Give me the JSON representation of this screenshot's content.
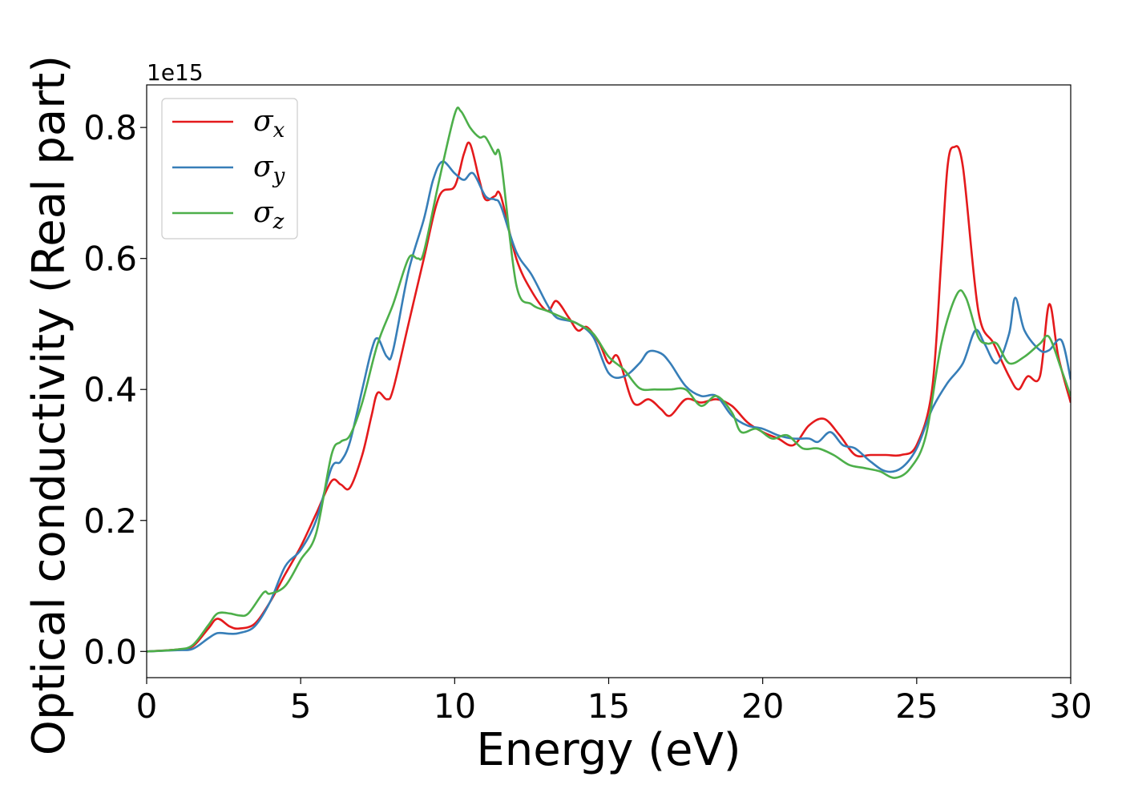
{
  "chart_data": {
    "type": "line",
    "xlabel": "Energy (eV)",
    "ylabel": "Optical conductivity (Real part)",
    "y_offset_text": "1e15",
    "xlim": [
      0,
      30
    ],
    "ylim": [
      -0.04,
      0.865
    ],
    "x_ticks": [
      0,
      5,
      10,
      15,
      20,
      25,
      30
    ],
    "x_tick_labels": [
      "0",
      "5",
      "10",
      "15",
      "20",
      "25",
      "30"
    ],
    "y_ticks": [
      0.0,
      0.2,
      0.4,
      0.6,
      0.8
    ],
    "y_tick_labels": [
      "0.0",
      "0.2",
      "0.4",
      "0.6",
      "0.8"
    ],
    "grid": false,
    "legend_position": "top-left",
    "series": [
      {
        "name": "σ",
        "subscript": "x",
        "color": "#e41a1c",
        "points": [
          [
            0,
            0
          ],
          [
            1,
            0.003
          ],
          [
            1.5,
            0.008
          ],
          [
            2,
            0.035
          ],
          [
            2.3,
            0.05
          ],
          [
            2.7,
            0.038
          ],
          [
            3,
            0.035
          ],
          [
            3.5,
            0.042
          ],
          [
            4,
            0.075
          ],
          [
            4.5,
            0.118
          ],
          [
            5,
            0.16
          ],
          [
            5.5,
            0.21
          ],
          [
            6,
            0.26
          ],
          [
            6.3,
            0.255
          ],
          [
            6.6,
            0.25
          ],
          [
            7,
            0.3
          ],
          [
            7.3,
            0.36
          ],
          [
            7.5,
            0.395
          ],
          [
            7.8,
            0.385
          ],
          [
            8,
            0.4
          ],
          [
            8.5,
            0.5
          ],
          [
            9,
            0.6
          ],
          [
            9.5,
            0.695
          ],
          [
            10,
            0.71
          ],
          [
            10.3,
            0.76
          ],
          [
            10.5,
            0.775
          ],
          [
            10.8,
            0.72
          ],
          [
            11,
            0.69
          ],
          [
            11.3,
            0.695
          ],
          [
            11.5,
            0.695
          ],
          [
            12,
            0.6
          ],
          [
            12.5,
            0.55
          ],
          [
            13,
            0.52
          ],
          [
            13.3,
            0.535
          ],
          [
            13.7,
            0.51
          ],
          [
            14,
            0.49
          ],
          [
            14.3,
            0.495
          ],
          [
            14.7,
            0.47
          ],
          [
            15,
            0.44
          ],
          [
            15.3,
            0.45
          ],
          [
            15.8,
            0.38
          ],
          [
            16.3,
            0.385
          ],
          [
            16.7,
            0.37
          ],
          [
            17,
            0.36
          ],
          [
            17.5,
            0.385
          ],
          [
            18,
            0.38
          ],
          [
            18.5,
            0.385
          ],
          [
            19,
            0.375
          ],
          [
            19.5,
            0.35
          ],
          [
            20,
            0.335
          ],
          [
            20.5,
            0.325
          ],
          [
            21,
            0.315
          ],
          [
            21.5,
            0.345
          ],
          [
            22,
            0.355
          ],
          [
            22.5,
            0.33
          ],
          [
            23,
            0.3
          ],
          [
            23.5,
            0.3
          ],
          [
            24,
            0.3
          ],
          [
            24.5,
            0.3
          ],
          [
            25,
            0.315
          ],
          [
            25.5,
            0.4
          ],
          [
            25.8,
            0.6
          ],
          [
            26,
            0.74
          ],
          [
            26.2,
            0.77
          ],
          [
            26.5,
            0.74
          ],
          [
            27,
            0.52
          ],
          [
            27.5,
            0.47
          ],
          [
            28,
            0.42
          ],
          [
            28.3,
            0.4
          ],
          [
            28.6,
            0.42
          ],
          [
            29,
            0.42
          ],
          [
            29.3,
            0.53
          ],
          [
            29.6,
            0.45
          ],
          [
            30,
            0.38
          ]
        ]
      },
      {
        "name": "σ",
        "subscript": "y",
        "color": "#377eb8",
        "points": [
          [
            0,
            0
          ],
          [
            1,
            0.002
          ],
          [
            1.5,
            0.004
          ],
          [
            2,
            0.02
          ],
          [
            2.3,
            0.028
          ],
          [
            2.7,
            0.027
          ],
          [
            3,
            0.028
          ],
          [
            3.5,
            0.038
          ],
          [
            4,
            0.075
          ],
          [
            4.5,
            0.13
          ],
          [
            5,
            0.155
          ],
          [
            5.5,
            0.2
          ],
          [
            6,
            0.28
          ],
          [
            6.3,
            0.29
          ],
          [
            6.6,
            0.32
          ],
          [
            7,
            0.4
          ],
          [
            7.3,
            0.46
          ],
          [
            7.5,
            0.478
          ],
          [
            7.8,
            0.45
          ],
          [
            8,
            0.46
          ],
          [
            8.5,
            0.58
          ],
          [
            9,
            0.66
          ],
          [
            9.3,
            0.72
          ],
          [
            9.6,
            0.748
          ],
          [
            10,
            0.73
          ],
          [
            10.3,
            0.72
          ],
          [
            10.6,
            0.73
          ],
          [
            11,
            0.695
          ],
          [
            11.3,
            0.69
          ],
          [
            11.5,
            0.68
          ],
          [
            12,
            0.61
          ],
          [
            12.5,
            0.575
          ],
          [
            13,
            0.53
          ],
          [
            13.3,
            0.51
          ],
          [
            13.7,
            0.505
          ],
          [
            14,
            0.5
          ],
          [
            14.5,
            0.48
          ],
          [
            15,
            0.425
          ],
          [
            15.5,
            0.42
          ],
          [
            16,
            0.44
          ],
          [
            16.3,
            0.458
          ],
          [
            16.7,
            0.455
          ],
          [
            17,
            0.44
          ],
          [
            17.5,
            0.405
          ],
          [
            18,
            0.39
          ],
          [
            18.5,
            0.39
          ],
          [
            19,
            0.36
          ],
          [
            19.5,
            0.345
          ],
          [
            20,
            0.34
          ],
          [
            20.5,
            0.33
          ],
          [
            21,
            0.325
          ],
          [
            21.5,
            0.325
          ],
          [
            21.8,
            0.32
          ],
          [
            22.2,
            0.335
          ],
          [
            22.6,
            0.315
          ],
          [
            23,
            0.31
          ],
          [
            23.5,
            0.29
          ],
          [
            24,
            0.275
          ],
          [
            24.5,
            0.28
          ],
          [
            25,
            0.31
          ],
          [
            25.5,
            0.37
          ],
          [
            26,
            0.41
          ],
          [
            26.5,
            0.44
          ],
          [
            26.9,
            0.49
          ],
          [
            27.2,
            0.47
          ],
          [
            27.6,
            0.44
          ],
          [
            28,
            0.485
          ],
          [
            28.2,
            0.54
          ],
          [
            28.5,
            0.49
          ],
          [
            29,
            0.46
          ],
          [
            29.3,
            0.46
          ],
          [
            29.7,
            0.475
          ],
          [
            30,
            0.415
          ]
        ]
      },
      {
        "name": "σ",
        "subscript": "z",
        "color": "#4daf4a",
        "points": [
          [
            0,
            0
          ],
          [
            1,
            0.003
          ],
          [
            1.5,
            0.01
          ],
          [
            2,
            0.04
          ],
          [
            2.3,
            0.058
          ],
          [
            2.7,
            0.058
          ],
          [
            3,
            0.055
          ],
          [
            3.3,
            0.058
          ],
          [
            3.8,
            0.09
          ],
          [
            4,
            0.088
          ],
          [
            4.5,
            0.1
          ],
          [
            5,
            0.14
          ],
          [
            5.5,
            0.18
          ],
          [
            6,
            0.3
          ],
          [
            6.3,
            0.32
          ],
          [
            6.6,
            0.33
          ],
          [
            7,
            0.38
          ],
          [
            7.5,
            0.47
          ],
          [
            8,
            0.53
          ],
          [
            8.5,
            0.6
          ],
          [
            8.8,
            0.6
          ],
          [
            9,
            0.61
          ],
          [
            9.5,
            0.72
          ],
          [
            10,
            0.82
          ],
          [
            10.2,
            0.825
          ],
          [
            10.5,
            0.8
          ],
          [
            10.8,
            0.785
          ],
          [
            11,
            0.785
          ],
          [
            11.3,
            0.76
          ],
          [
            11.5,
            0.75
          ],
          [
            12,
            0.56
          ],
          [
            12.5,
            0.53
          ],
          [
            13,
            0.52
          ],
          [
            13.5,
            0.51
          ],
          [
            14,
            0.5
          ],
          [
            14.5,
            0.485
          ],
          [
            15,
            0.45
          ],
          [
            15.5,
            0.43
          ],
          [
            16,
            0.402
          ],
          [
            16.5,
            0.4
          ],
          [
            17,
            0.4
          ],
          [
            17.5,
            0.4
          ],
          [
            18,
            0.375
          ],
          [
            18.5,
            0.39
          ],
          [
            19,
            0.365
          ],
          [
            19.3,
            0.335
          ],
          [
            19.8,
            0.34
          ],
          [
            20.3,
            0.325
          ],
          [
            20.8,
            0.33
          ],
          [
            21.3,
            0.31
          ],
          [
            21.8,
            0.31
          ],
          [
            22.3,
            0.3
          ],
          [
            22.8,
            0.285
          ],
          [
            23.3,
            0.28
          ],
          [
            23.8,
            0.275
          ],
          [
            24.3,
            0.265
          ],
          [
            24.8,
            0.28
          ],
          [
            25.3,
            0.33
          ],
          [
            25.8,
            0.47
          ],
          [
            26.3,
            0.545
          ],
          [
            26.6,
            0.54
          ],
          [
            27,
            0.48
          ],
          [
            27.3,
            0.47
          ],
          [
            27.6,
            0.47
          ],
          [
            28,
            0.44
          ],
          [
            28.5,
            0.45
          ],
          [
            29,
            0.47
          ],
          [
            29.3,
            0.48
          ],
          [
            29.7,
            0.43
          ],
          [
            30,
            0.39
          ]
        ]
      }
    ]
  }
}
